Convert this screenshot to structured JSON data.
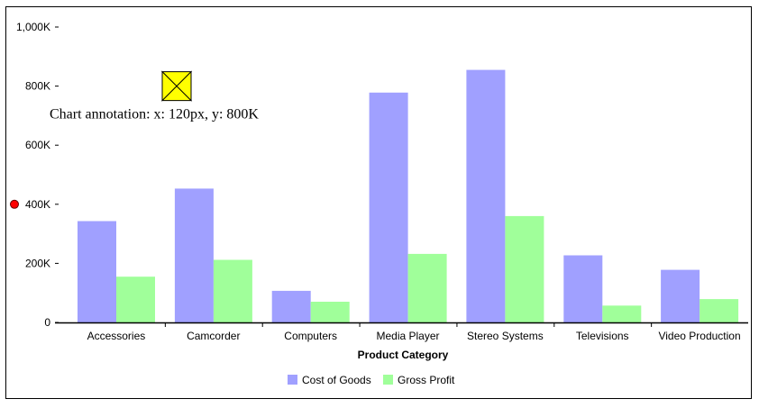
{
  "chart_data": {
    "type": "bar",
    "categories": [
      "Accessories",
      "Camcorder",
      "Computers",
      "Media Player",
      "Stereo Systems",
      "Televisions",
      "Video Production"
    ],
    "series": [
      {
        "name": "Cost of Goods",
        "color": "#a0a0ff",
        "values": [
          343000,
          453000,
          107000,
          778000,
          855000,
          227000,
          178000
        ]
      },
      {
        "name": "Gross Profit",
        "color": "#a0ff9a",
        "values": [
          155000,
          212000,
          70000,
          232000,
          360000,
          57000,
          79000
        ]
      }
    ],
    "xlabel": "Product Category",
    "ylabel": "",
    "ylim": [
      0,
      1000000
    ],
    "yticks": [
      {
        "value": 0,
        "label": "0"
      },
      {
        "value": 200000,
        "label": "200K"
      },
      {
        "value": 400000,
        "label": "400K"
      },
      {
        "value": 600000,
        "label": "600K"
      },
      {
        "value": 800000,
        "label": "800K"
      },
      {
        "value": 1000000,
        "label": "1,000K"
      }
    ],
    "legend_position": "bottom",
    "grid": false,
    "annotation": {
      "text": "Chart annotation: x: 120px, y: 800K",
      "marker_icon": "yellow-cross-marker-icon",
      "marker_color": "#ffff00",
      "y_value": 800000
    },
    "y_axis_marker": {
      "icon": "red-dot-icon",
      "color": "#ff0000",
      "y_value": 400000
    }
  }
}
